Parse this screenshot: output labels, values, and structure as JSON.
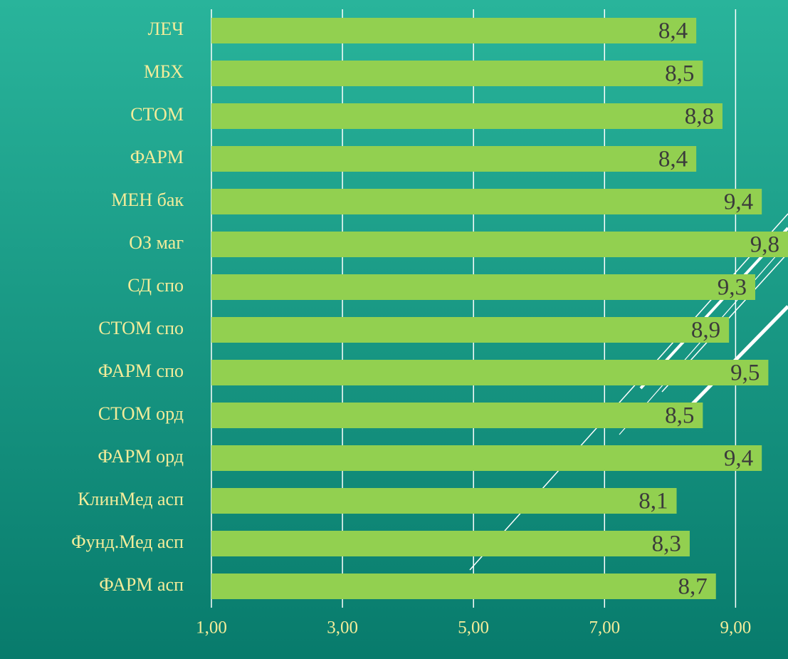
{
  "chart_data": {
    "type": "barh",
    "categories": [
      "ЛЕЧ",
      "МБХ",
      "СТОМ",
      "ФАРМ",
      "МЕН бак",
      "ОЗ маг",
      "СД спо",
      "СТОМ спо",
      "ФАРМ спо",
      "СТОМ орд",
      "ФАРМ орд",
      "КлинМед асп",
      "Фунд.Мед асп",
      "ФАРМ асп"
    ],
    "values": [
      8.4,
      8.5,
      8.8,
      8.4,
      9.4,
      9.8,
      9.3,
      8.9,
      9.5,
      8.5,
      9.4,
      8.1,
      8.3,
      8.7
    ],
    "value_labels": [
      "8,4",
      "8,5",
      "8,8",
      "8,4",
      "9,4",
      "9,8",
      "9,3",
      "8,9",
      "9,5",
      "8,5",
      "9,4",
      "8,1",
      "8,3",
      "8,7"
    ],
    "color": "#92d050",
    "xlim": [
      1,
      9.8
    ],
    "xticks": [
      {
        "value": 1,
        "label": "1,00"
      },
      {
        "value": 3,
        "label": "3,00"
      },
      {
        "value": 5,
        "label": "5,00"
      },
      {
        "value": 7,
        "label": "7,00"
      },
      {
        "value": 9,
        "label": "9,00"
      }
    ],
    "grid": true
  }
}
